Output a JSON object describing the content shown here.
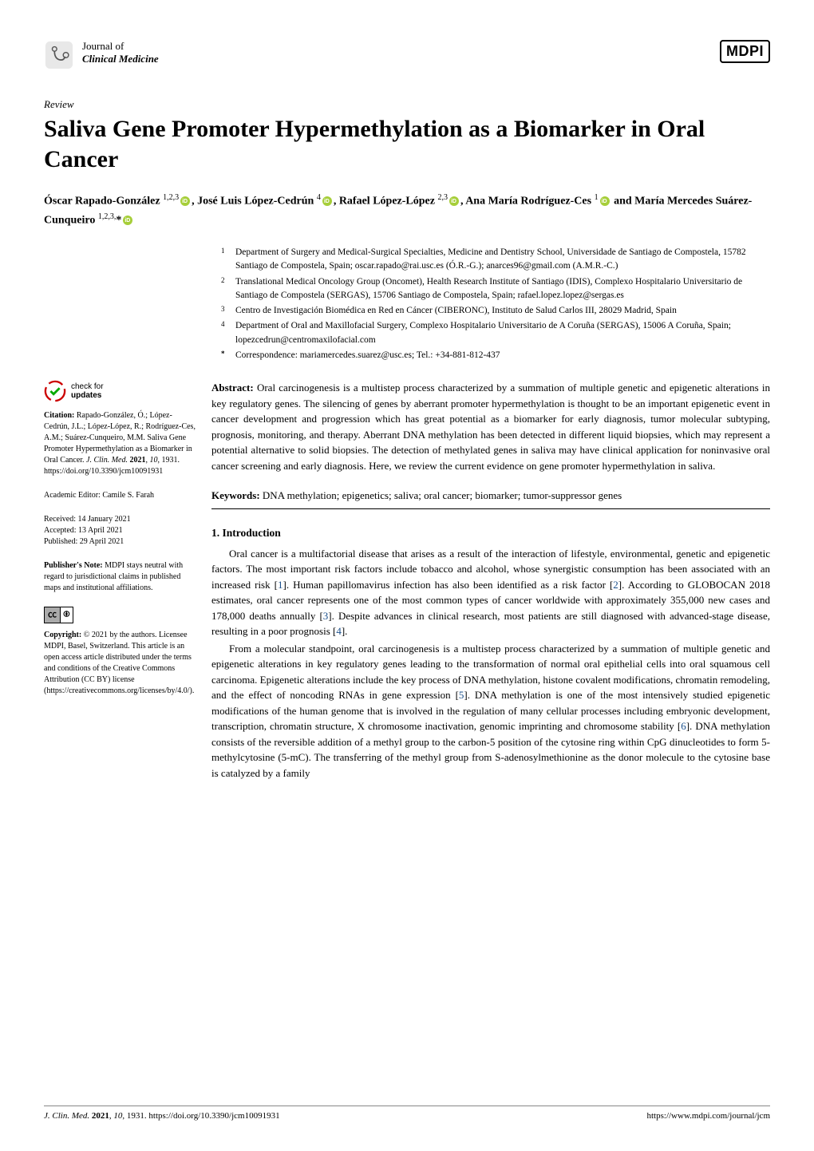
{
  "journal": {
    "line1": "Journal of",
    "line2": "Clinical Medicine"
  },
  "publisher_logo": "MDPI",
  "article_type": "Review",
  "title": "Saliva Gene Promoter Hypermethylation as a Biomarker in Oral Cancer",
  "authors_html": "Óscar Rapado-González <sup>1,2,3</sup><span class='orcid'></span>, José Luis López-Cedrún <sup>4</sup><span class='orcid'></span>, Rafael López-López <sup>2,3</sup><span class='orcid'></span>, Ana María Rodríguez-Ces <sup>1</sup><span class='orcid'></span> and María Mercedes Suárez-Cunqueiro <sup>1,2,3,</sup>*<span class='orcid'></span>",
  "affiliations": [
    {
      "num": "1",
      "text": "Department of Surgery and Medical-Surgical Specialties, Medicine and Dentistry School, Universidade de Santiago de Compostela, 15782 Santiago de Compostela, Spain; oscar.rapado@rai.usc.es (Ó.R.-G.); anarces96@gmail.com (A.M.R.-C.)"
    },
    {
      "num": "2",
      "text": "Translational Medical Oncology Group (Oncomet), Health Research Institute of Santiago (IDIS), Complexo Hospitalario Universitario de Santiago de Compostela (SERGAS), 15706 Santiago de Compostela, Spain; rafael.lopez.lopez@sergas.es"
    },
    {
      "num": "3",
      "text": "Centro de Investigación Biomédica en Red en Cáncer (CIBERONC), Instituto de Salud Carlos III, 28029 Madrid, Spain"
    },
    {
      "num": "4",
      "text": "Department of Oral and Maxillofacial Surgery, Complexo Hospitalario Universitario de A Coruña (SERGAS), 15006 A Coruña, Spain; lopezcedrun@centromaxilofacial.com"
    },
    {
      "num": "*",
      "text": "Correspondence: mariamercedes.suarez@usc.es; Tel.: +34-881-812-437"
    }
  ],
  "abstract": {
    "label": "Abstract:",
    "text": "Oral carcinogenesis is a multistep process characterized by a summation of multiple genetic and epigenetic alterations in key regulatory genes. The silencing of genes by aberrant promoter hypermethylation is thought to be an important epigenetic event in cancer development and progression which has great potential as a biomarker for early diagnosis, tumor molecular subtyping, prognosis, monitoring, and therapy. Aberrant DNA methylation has been detected in different liquid biopsies, which may represent a potential alternative to solid biopsies. The detection of methylated genes in saliva may have clinical application for noninvasive oral cancer screening and early diagnosis. Here, we review the current evidence on gene promoter hypermethylation in saliva."
  },
  "keywords": {
    "label": "Keywords:",
    "text": "DNA methylation; epigenetics; saliva; oral cancer; biomarker; tumor-suppressor genes"
  },
  "section1": {
    "heading": "1. Introduction",
    "para1": "Oral cancer is a multifactorial disease that arises as a result of the interaction of lifestyle, environmental, genetic and epigenetic factors. The most important risk factors include tobacco and alcohol, whose synergistic consumption has been associated with an increased risk [<span class='ref-link'>1</span>]. Human papillomavirus infection has also been identified as a risk factor [<span class='ref-link'>2</span>]. According to GLOBOCAN 2018 estimates, oral cancer represents one of the most common types of cancer worldwide with approximately 355,000 new cases and 178,000 deaths annually [<span class='ref-link'>3</span>]. Despite advances in clinical research, most patients are still diagnosed with advanced-stage disease, resulting in a poor prognosis [<span class='ref-link'>4</span>].",
    "para2": "From a molecular standpoint, oral carcinogenesis is a multistep process characterized by a summation of multiple genetic and epigenetic alterations in key regulatory genes leading to the transformation of normal oral epithelial cells into oral squamous cell carcinoma. Epigenetic alterations include the key process of DNA methylation, histone covalent modifications, chromatin remodeling, and the effect of noncoding RNAs in gene expression [<span class='ref-link'>5</span>]. DNA methylation is one of the most intensively studied epigenetic modifications of the human genome that is involved in the regulation of many cellular processes including embryonic development, transcription, chromatin structure, X chromosome inactivation, genomic imprinting and chromosome stability [<span class='ref-link'>6</span>]. DNA methylation consists of the reversible addition of a methyl group to the carbon-5 position of the cytosine ring within CpG dinucleotides to form 5-methylcytosine (5-mC). The transferring of the methyl group from S-adenosylmethionine as the donor molecule to the cytosine base is catalyzed by a family"
  },
  "sidebar": {
    "check_updates": {
      "line1": "check for",
      "line2": "updates"
    },
    "citation": {
      "label": "Citation:",
      "text": "Rapado-González, Ó.; López-Cedrún, J.L.; López-López, R.; Rodríguez-Ces, A.M.; Suárez-Cunqueiro, M.M. Saliva Gene Promoter Hypermethylation as a Biomarker in Oral Cancer. <span class='italic'>J. Clin. Med.</span> <b>2021</b>, <span class='italic'>10</span>, 1931. https://doi.org/10.3390/jcm10091931"
    },
    "editor": {
      "label": "Academic Editor:",
      "name": "Camile S. Farah"
    },
    "dates": {
      "received": "Received: 14 January 2021",
      "accepted": "Accepted: 13 April 2021",
      "published": "Published: 29 April 2021"
    },
    "note": {
      "label": "Publisher's Note:",
      "text": "MDPI stays neutral with regard to jurisdictional claims in published maps and institutional affiliations."
    },
    "copyright": {
      "label": "Copyright:",
      "text": "© 2021 by the authors. Licensee MDPI, Basel, Switzerland. This article is an open access article distributed under the terms and conditions of the Creative Commons Attribution (CC BY) license (https://creativecommons.org/licenses/by/4.0/)."
    }
  },
  "footer": {
    "left": "<span class='italic'>J. Clin. Med.</span> <b>2021</b>, <span class='italic'>10</span>, 1931. https://doi.org/10.3390/jcm10091931",
    "right": "https://www.mdpi.com/journal/jcm"
  },
  "colors": {
    "orcid_green": "#a6ce39",
    "ref_blue": "#1a4f8b",
    "text": "#000000",
    "background": "#ffffff"
  }
}
